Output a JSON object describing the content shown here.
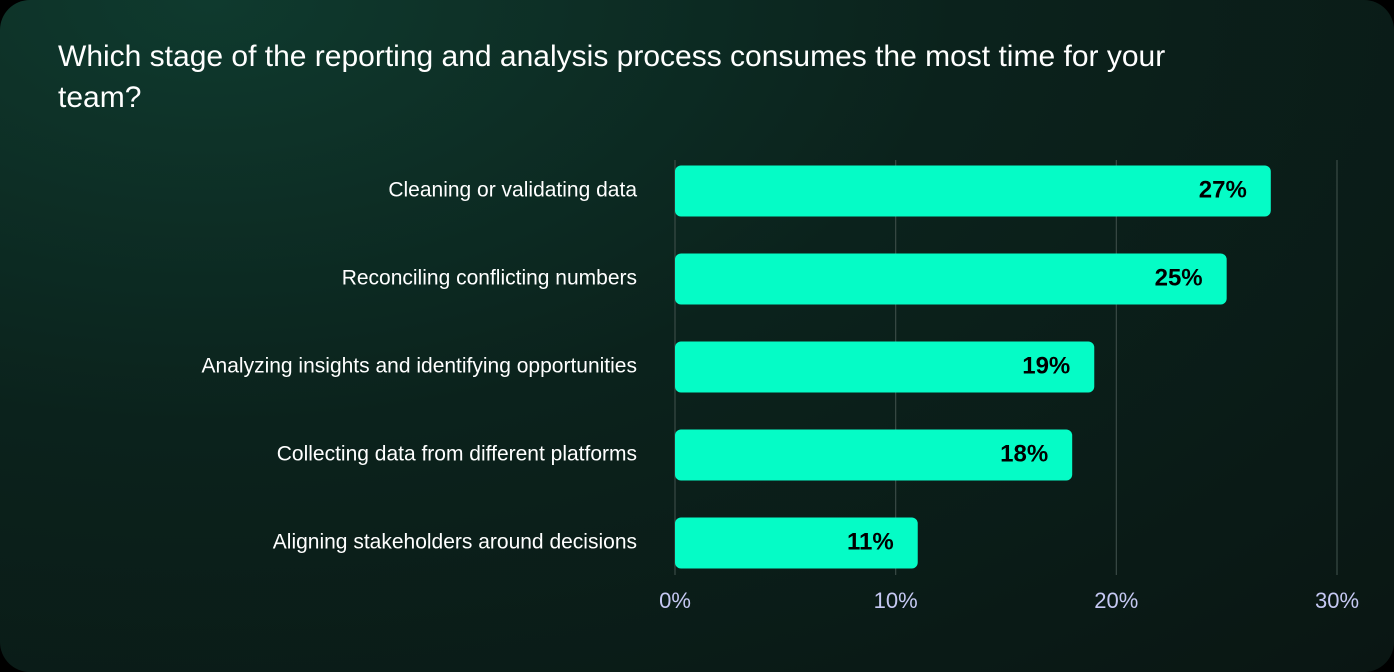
{
  "chart_data": {
    "type": "bar",
    "orientation": "horizontal",
    "title": "Which stage of the reporting and analysis process consumes the most time for your team?",
    "categories": [
      "Cleaning or validating data",
      "Reconciling conflicting numbers",
      "Analyzing insights and identifying opportunities",
      "Collecting data from different platforms",
      "Aligning stakeholders around decisions"
    ],
    "values": [
      27,
      25,
      19,
      18,
      11
    ],
    "value_labels": [
      "27%",
      "25%",
      "19%",
      "18%",
      "11%"
    ],
    "color": "#05fcc6",
    "xlim": [
      0,
      30
    ],
    "xticks": [
      {
        "value": 0,
        "label": "0%"
      },
      {
        "value": 10,
        "label": "10%"
      },
      {
        "value": 20,
        "label": "20%"
      },
      {
        "value": 30,
        "label": "30%"
      }
    ],
    "grid": true
  }
}
